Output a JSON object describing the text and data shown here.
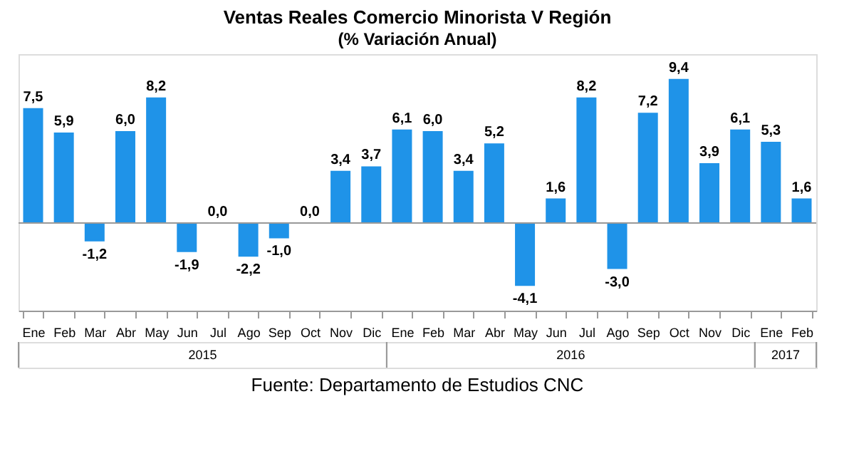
{
  "chart_data": {
    "type": "bar",
    "title": "Ventas Reales Comercio Minorista V Región",
    "subtitle": "(% Variación Anual)",
    "categories": [
      "Ene",
      "Feb",
      "Mar",
      "Abr",
      "May",
      "Jun",
      "Jul",
      "Ago",
      "Sep",
      "Oct",
      "Nov",
      "Dic",
      "Ene",
      "Feb",
      "Mar",
      "Abr",
      "May",
      "Jun",
      "Jul",
      "Ago",
      "Sep",
      "Oct",
      "Nov",
      "Dic",
      "Ene",
      "Feb"
    ],
    "values": [
      7.5,
      5.9,
      -1.2,
      6.0,
      8.2,
      -1.9,
      0.0,
      -2.2,
      -1.0,
      0.0,
      3.4,
      3.7,
      6.1,
      6.0,
      3.4,
      5.2,
      -4.1,
      1.6,
      8.2,
      -3.0,
      7.2,
      9.4,
      3.9,
      6.1,
      5.3,
      1.6
    ],
    "value_labels": [
      "7,5",
      "5,9",
      "-1,2",
      "6,0",
      "8,2",
      "-1,9",
      "0,0",
      "-2,2",
      "-1,0",
      "0,0",
      "3,4",
      "3,7",
      "6,1",
      "6,0",
      "3,4",
      "5,2",
      "-4,1",
      "1,6",
      "8,2",
      "-3,0",
      "7,2",
      "9,4",
      "3,9",
      "6,1",
      "5,3",
      "1,6"
    ],
    "color": "#1f93e8",
    "annotations": [
      "2015",
      "2016",
      "2017",
      "Fuente: Departamento de Estudios CNC"
    ],
    "grid": false
  }
}
